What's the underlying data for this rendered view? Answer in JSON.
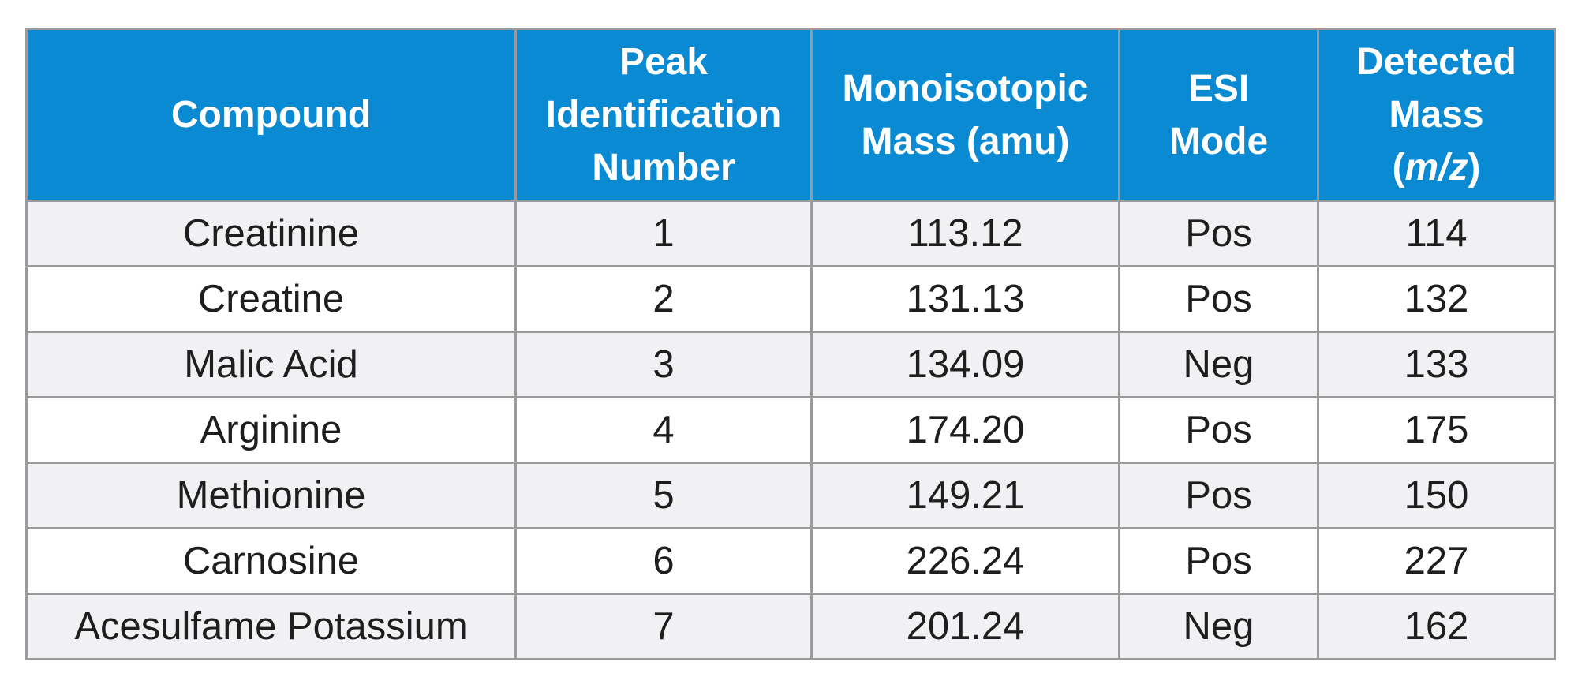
{
  "table": {
    "headers": [
      {
        "lines": [
          "Compound"
        ]
      },
      {
        "lines": [
          "Peak",
          "Identification",
          "Number"
        ]
      },
      {
        "lines": [
          "Monoisotopic",
          "Mass (amu)"
        ]
      },
      {
        "lines": [
          "ESI",
          "Mode"
        ]
      },
      {
        "lines": [
          "Detected",
          "Mass"
        ],
        "unit_open": "(",
        "unit_italic": "m/z",
        "unit_close": ")"
      }
    ],
    "rows": [
      {
        "compound": "Creatinine",
        "peak": "1",
        "mass": "113.12",
        "mode": "Pos",
        "detected": "114"
      },
      {
        "compound": "Creatine",
        "peak": "2",
        "mass": "131.13",
        "mode": "Pos",
        "detected": "132"
      },
      {
        "compound": "Malic Acid",
        "peak": "3",
        "mass": "134.09",
        "mode": "Neg",
        "detected": "133"
      },
      {
        "compound": "Arginine",
        "peak": "4",
        "mass": "174.20",
        "mode": "Pos",
        "detected": "175"
      },
      {
        "compound": "Methionine",
        "peak": "5",
        "mass": "149.21",
        "mode": "Pos",
        "detected": "150"
      },
      {
        "compound": "Carnosine",
        "peak": "6",
        "mass": "226.24",
        "mode": "Pos",
        "detected": "227"
      },
      {
        "compound": "Acesulfame Potassium",
        "peak": "7",
        "mass": "201.24",
        "mode": "Neg",
        "detected": "162"
      }
    ]
  },
  "colors": {
    "header_bg": "#0a8ad3",
    "header_text": "#ffffff",
    "row_shade": "#f1f1f3",
    "grid": "#9a9a9a"
  }
}
